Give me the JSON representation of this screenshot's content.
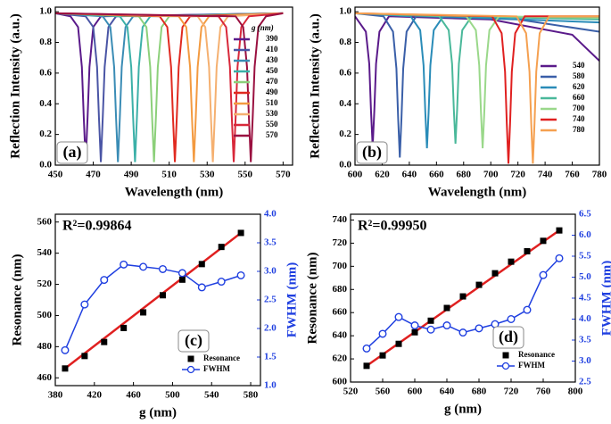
{
  "chart_data": [
    {
      "type": "line",
      "panel_label": "(a)",
      "xlabel": "Wavelength (nm)",
      "ylabel": "Reflection Intensity (a.u.)",
      "xlim": [
        450,
        575
      ],
      "xticks": [
        450,
        470,
        490,
        510,
        530,
        550,
        570
      ],
      "ylim": [
        0,
        1.03
      ],
      "yticks": [
        {
          "value": 0,
          "label": "0.0"
        },
        0.2,
        0.4,
        0.6,
        0.8,
        {
          "value": 1,
          "label": "1.0"
        }
      ],
      "legend_title": "g (nm)",
      "series": [
        {
          "name": "390",
          "color": "#5a1a8a",
          "x": [
            450,
            458,
            462,
            464,
            465,
            466,
            467,
            468,
            470,
            474,
            570
          ],
          "values": [
            0.99,
            0.97,
            0.9,
            0.64,
            0.31,
            0.02,
            0.31,
            0.64,
            0.9,
            0.97,
            0.99
          ]
        },
        {
          "name": "410",
          "color": "#4a55a5",
          "x": [
            450,
            466,
            470,
            472,
            473,
            474,
            475,
            476,
            478,
            482,
            570
          ],
          "values": [
            0.99,
            0.97,
            0.9,
            0.64,
            0.31,
            0.02,
            0.31,
            0.64,
            0.9,
            0.97,
            0.99
          ]
        },
        {
          "name": "430",
          "color": "#3a8cb5",
          "x": [
            450,
            475,
            479,
            481,
            482,
            483,
            484,
            485,
            487,
            491,
            570
          ],
          "values": [
            0.99,
            0.97,
            0.9,
            0.64,
            0.31,
            0.02,
            0.31,
            0.64,
            0.9,
            0.97,
            0.99
          ]
        },
        {
          "name": "450",
          "color": "#3cb0a8",
          "x": [
            450,
            484,
            488,
            490,
            491,
            492,
            493,
            494,
            496,
            500,
            570
          ],
          "values": [
            0.99,
            0.97,
            0.9,
            0.64,
            0.31,
            0.02,
            0.31,
            0.64,
            0.9,
            0.97,
            0.99
          ]
        },
        {
          "name": "470",
          "color": "#8cd07a",
          "x": [
            450,
            494,
            498,
            500,
            501,
            502,
            503,
            504,
            506,
            510,
            570
          ],
          "values": [
            0.99,
            0.97,
            0.9,
            0.64,
            0.31,
            0.02,
            0.31,
            0.64,
            0.9,
            0.97,
            0.99
          ]
        },
        {
          "name": "490",
          "color": "#e02a20",
          "x": [
            450,
            505,
            509,
            511,
            512,
            513,
            514,
            515,
            517,
            521,
            570
          ],
          "values": [
            0.99,
            0.97,
            0.9,
            0.64,
            0.31,
            0.02,
            0.31,
            0.64,
            0.9,
            0.97,
            0.99
          ]
        },
        {
          "name": "510",
          "color": "#f39a40",
          "x": [
            450,
            515,
            519,
            521,
            522,
            523,
            524,
            525,
            527,
            531,
            570
          ],
          "values": [
            0.99,
            0.97,
            0.9,
            0.64,
            0.31,
            0.02,
            0.31,
            0.64,
            0.9,
            0.97,
            0.99
          ]
        },
        {
          "name": "530",
          "color": "#f5b070",
          "x": [
            450,
            525,
            529,
            531,
            532,
            533,
            534,
            535,
            537,
            541,
            570
          ],
          "values": [
            0.99,
            0.97,
            0.9,
            0.64,
            0.31,
            0.02,
            0.31,
            0.64,
            0.9,
            0.97,
            0.99
          ]
        },
        {
          "name": "550",
          "color": "#d8283a",
          "x": [
            450,
            536,
            540,
            542,
            543,
            544,
            545,
            546,
            548,
            552,
            570
          ],
          "values": [
            0.99,
            0.97,
            0.9,
            0.64,
            0.31,
            0.02,
            0.31,
            0.64,
            0.9,
            0.97,
            0.99
          ]
        },
        {
          "name": "570",
          "color": "#9a1040",
          "x": [
            450,
            545,
            549,
            551,
            552,
            553,
            554,
            555,
            557,
            561,
            570
          ],
          "values": [
            0.99,
            0.97,
            0.9,
            0.64,
            0.31,
            0.02,
            0.31,
            0.64,
            0.9,
            0.97,
            0.99
          ]
        }
      ]
    },
    {
      "type": "line",
      "panel_label": "(b)",
      "xlabel": "Wavelength (nm)",
      "ylabel": "Reflection Intensity (a.u.)",
      "xlim": [
        600,
        780
      ],
      "xticks": [
        600,
        620,
        640,
        660,
        680,
        700,
        720,
        740,
        760,
        780
      ],
      "ylim": [
        0,
        1.03
      ],
      "yticks": [
        {
          "value": 0,
          "label": "0.0"
        },
        0.2,
        0.4,
        0.6,
        0.8,
        {
          "value": 1,
          "label": "1.0"
        }
      ],
      "series": [
        {
          "name": "540",
          "color": "#5a1a8a",
          "x": [
            600,
            608,
            610.5,
            611.8,
            613,
            614.2,
            615.5,
            618,
            625,
            700,
            760,
            780
          ],
          "values": [
            0.97,
            0.87,
            0.66,
            0.35,
            0.12,
            0.35,
            0.66,
            0.87,
            0.97,
            0.95,
            0.85,
            0.68
          ]
        },
        {
          "name": "580",
          "color": "#3a5fa8",
          "x": [
            600,
            621,
            628,
            630.5,
            631.8,
            633,
            634.2,
            635.5,
            638,
            645,
            720,
            780
          ],
          "values": [
            0.99,
            0.97,
            0.87,
            0.63,
            0.3,
            0.05,
            0.3,
            0.63,
            0.87,
            0.97,
            0.95,
            0.87
          ]
        },
        {
          "name": "620",
          "color": "#2a8cb8",
          "x": [
            600,
            641,
            648,
            650.5,
            651.8,
            653,
            654.2,
            655.5,
            658,
            665,
            780
          ],
          "values": [
            0.99,
            0.97,
            0.88,
            0.65,
            0.34,
            0.11,
            0.34,
            0.65,
            0.88,
            0.97,
            0.93
          ]
        },
        {
          "name": "660",
          "color": "#4ab89a",
          "x": [
            600,
            662,
            669,
            671.5,
            672.8,
            674,
            675.2,
            676.5,
            679,
            686,
            780
          ],
          "values": [
            0.99,
            0.97,
            0.88,
            0.66,
            0.36,
            0.14,
            0.36,
            0.66,
            0.88,
            0.97,
            0.95
          ]
        },
        {
          "name": "700",
          "color": "#9ad88a",
          "x": [
            600,
            682,
            689,
            691.5,
            692.8,
            694,
            695.2,
            696.5,
            699,
            706,
            780
          ],
          "values": [
            0.99,
            0.97,
            0.88,
            0.65,
            0.34,
            0.11,
            0.34,
            0.65,
            0.88,
            0.97,
            0.96
          ]
        },
        {
          "name": "740",
          "color": "#e02020",
          "x": [
            600,
            701,
            708,
            710.5,
            711.8,
            713,
            714.2,
            715.5,
            718,
            725,
            780
          ],
          "values": [
            0.99,
            0.97,
            0.86,
            0.61,
            0.27,
            0.01,
            0.27,
            0.61,
            0.86,
            0.97,
            0.97
          ]
        },
        {
          "name": "780",
          "color": "#f5a050",
          "x": [
            600,
            719,
            726,
            728.5,
            729.8,
            731,
            732.2,
            733.5,
            736,
            743,
            780
          ],
          "values": [
            0.99,
            0.97,
            0.86,
            0.61,
            0.27,
            0.01,
            0.27,
            0.61,
            0.86,
            0.97,
            0.97
          ]
        }
      ]
    },
    {
      "type": "line",
      "panel_label": "(c)",
      "annotation": "R²=0.99864",
      "xlabel": "g (nm)",
      "ylabel": "Resonance (nm)",
      "y2label": "FWHM (nm)",
      "xlim": [
        380,
        590
      ],
      "xticks": [
        380,
        420,
        460,
        500,
        540,
        580
      ],
      "ylim": [
        455,
        565
      ],
      "yticks": [
        460,
        480,
        500,
        520,
        540,
        560
      ],
      "y2lim": [
        1,
        4
      ],
      "y2ticks": [
        {
          "value": 1,
          "label": "1.0"
        },
        1.5,
        {
          "value": 2,
          "label": "2.0"
        },
        2.5,
        {
          "value": 3,
          "label": "3.0"
        },
        3.5,
        {
          "value": 4,
          "label": "4.0"
        }
      ],
      "x": [
        390,
        410,
        430,
        450,
        470,
        490,
        510,
        530,
        550,
        570
      ],
      "series": [
        {
          "name": "Resonance",
          "color": "#000000",
          "marker": "square",
          "line": false,
          "values": [
            466,
            474,
            483,
            492,
            502,
            513,
            523,
            533,
            544,
            553
          ]
        },
        {
          "name": "FWHM",
          "color": "#1f3fe0",
          "marker": "circle",
          "line": true,
          "axis": "y2",
          "values": [
            1.62,
            2.42,
            2.85,
            3.12,
            3.08,
            3.04,
            2.97,
            2.72,
            2.82,
            2.93
          ]
        }
      ],
      "fit": {
        "color": "#e02020",
        "x": [
          390,
          570
        ],
        "values": [
          466,
          553
        ]
      }
    },
    {
      "type": "line",
      "panel_label": "(d)",
      "annotation": "R²=0.99950",
      "xlabel": "g (nm)",
      "ylabel": "Resonance (nm)",
      "y2label": "FWHM (nm)",
      "xlim": [
        520,
        800
      ],
      "xticks": [
        520,
        560,
        600,
        640,
        680,
        720,
        760,
        800
      ],
      "ylim": [
        600,
        745
      ],
      "yticks": [
        600,
        620,
        640,
        660,
        680,
        700,
        720,
        740
      ],
      "y2lim": [
        2.5,
        6.5
      ],
      "y2ticks": [
        2.5,
        {
          "value": 3,
          "label": "3.0"
        },
        3.5,
        {
          "value": 4,
          "label": "4.0"
        },
        4.5,
        {
          "value": 5,
          "label": "5.0"
        },
        5.5,
        {
          "value": 6,
          "label": "6.0"
        },
        6.5
      ],
      "x": [
        540,
        560,
        580,
        600,
        620,
        640,
        660,
        680,
        700,
        720,
        740,
        760,
        780
      ],
      "series": [
        {
          "name": "Resonance",
          "color": "#000000",
          "marker": "square",
          "line": false,
          "values": [
            614,
            623,
            633,
            643,
            653,
            664,
            674,
            684,
            694,
            704,
            713,
            722,
            731
          ]
        },
        {
          "name": "FWHM",
          "color": "#1f3fe0",
          "marker": "circle",
          "line": true,
          "axis": "y2",
          "values": [
            3.3,
            3.65,
            4.05,
            3.85,
            3.75,
            3.85,
            3.68,
            3.78,
            3.88,
            4.0,
            4.22,
            5.05,
            5.45
          ]
        }
      ],
      "fit": {
        "color": "#e02020",
        "x": [
          540,
          780
        ],
        "values": [
          614,
          731
        ]
      }
    }
  ]
}
